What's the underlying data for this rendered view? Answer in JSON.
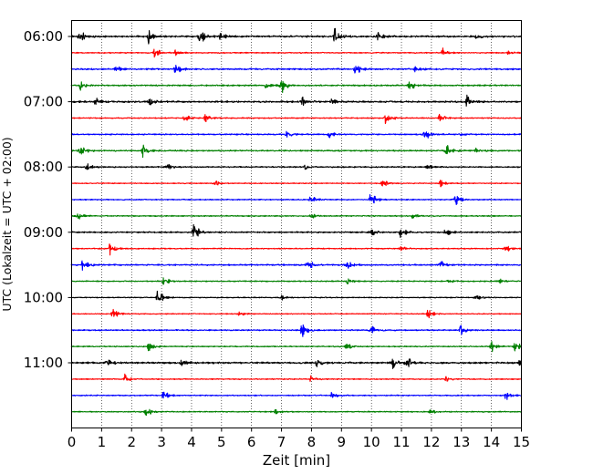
{
  "chart_data": {
    "type": "line",
    "title": "",
    "xlabel": "Zeit  [min]",
    "ylabel": "UTC (Lokalzeit = UTC + 02:00)",
    "xlim": [
      0,
      15
    ],
    "x_ticks": [
      0,
      1,
      2,
      3,
      4,
      5,
      6,
      7,
      8,
      9,
      10,
      11,
      12,
      13,
      14,
      15
    ],
    "y_tick_labels": [
      "06:00",
      "07:00",
      "08:00",
      "09:00",
      "10:00",
      "11:00"
    ],
    "grid": {
      "x": true,
      "style": "dotted",
      "y": false
    },
    "trace_interval_minutes": 15,
    "color_cycle": [
      "#000000",
      "#ff0000",
      "#0000ff",
      "#008000"
    ],
    "traces": [
      {
        "start": "06:00",
        "color": "#000000",
        "amplitude": 1.0,
        "events": [
          {
            "t": 0.3,
            "a": 2.2
          },
          {
            "t": 2.6,
            "a": 2.6
          },
          {
            "t": 4.3,
            "a": 3.0
          },
          {
            "t": 5.0,
            "a": 1.4
          },
          {
            "t": 8.8,
            "a": 3.2
          },
          {
            "t": 10.2,
            "a": 1.6
          },
          {
            "t": 13.5,
            "a": 1.0
          }
        ]
      },
      {
        "start": "06:15",
        "color": "#ff0000",
        "amplitude": 0.6,
        "events": [
          {
            "t": 2.8,
            "a": 2.2
          },
          {
            "t": 3.5,
            "a": 1.2
          },
          {
            "t": 12.4,
            "a": 1.6
          },
          {
            "t": 14.6,
            "a": 0.8
          }
        ]
      },
      {
        "start": "06:30",
        "color": "#0000ff",
        "amplitude": 0.9,
        "events": [
          {
            "t": 1.5,
            "a": 1.4
          },
          {
            "t": 3.5,
            "a": 2.2
          },
          {
            "t": 9.5,
            "a": 2.4
          },
          {
            "t": 11.5,
            "a": 1.2
          }
        ]
      },
      {
        "start": "06:45",
        "color": "#008000",
        "amplitude": 0.8,
        "events": [
          {
            "t": 0.3,
            "a": 1.6
          },
          {
            "t": 6.5,
            "a": 1.2
          },
          {
            "t": 7.0,
            "a": 3.2
          },
          {
            "t": 11.3,
            "a": 2.0
          }
        ]
      },
      {
        "start": "07:00",
        "color": "#000000",
        "amplitude": 1.0,
        "events": [
          {
            "t": 0.8,
            "a": 1.6
          },
          {
            "t": 2.6,
            "a": 1.8
          },
          {
            "t": 7.7,
            "a": 2.0
          },
          {
            "t": 8.7,
            "a": 1.8
          },
          {
            "t": 13.2,
            "a": 2.6
          }
        ]
      },
      {
        "start": "07:15",
        "color": "#ff0000",
        "amplitude": 0.6,
        "events": [
          {
            "t": 3.8,
            "a": 1.4
          },
          {
            "t": 4.5,
            "a": 2.0
          },
          {
            "t": 10.5,
            "a": 2.8
          },
          {
            "t": 12.3,
            "a": 1.4
          }
        ]
      },
      {
        "start": "07:30",
        "color": "#0000ff",
        "amplitude": 0.7,
        "events": [
          {
            "t": 7.2,
            "a": 1.4
          },
          {
            "t": 8.6,
            "a": 1.4
          },
          {
            "t": 11.8,
            "a": 3.0
          },
          {
            "t": 13.0,
            "a": 0.8
          }
        ]
      },
      {
        "start": "07:45",
        "color": "#008000",
        "amplitude": 0.8,
        "events": [
          {
            "t": 0.3,
            "a": 2.4
          },
          {
            "t": 2.4,
            "a": 2.2
          },
          {
            "t": 12.5,
            "a": 2.8
          },
          {
            "t": 13.5,
            "a": 0.8
          }
        ]
      },
      {
        "start": "08:00",
        "color": "#000000",
        "amplitude": 0.7,
        "events": [
          {
            "t": 0.5,
            "a": 1.6
          },
          {
            "t": 3.2,
            "a": 1.4
          },
          {
            "t": 7.8,
            "a": 1.0
          },
          {
            "t": 11.9,
            "a": 1.0
          }
        ]
      },
      {
        "start": "08:15",
        "color": "#ff0000",
        "amplitude": 0.5,
        "events": [
          {
            "t": 4.8,
            "a": 1.2
          },
          {
            "t": 10.4,
            "a": 1.6
          },
          {
            "t": 12.3,
            "a": 1.4
          }
        ]
      },
      {
        "start": "08:30",
        "color": "#0000ff",
        "amplitude": 0.6,
        "events": [
          {
            "t": 8.0,
            "a": 1.6
          },
          {
            "t": 10.0,
            "a": 2.8
          },
          {
            "t": 12.8,
            "a": 3.0
          }
        ]
      },
      {
        "start": "08:45",
        "color": "#008000",
        "amplitude": 0.6,
        "events": [
          {
            "t": 0.2,
            "a": 1.6
          },
          {
            "t": 8.0,
            "a": 1.0
          },
          {
            "t": 11.4,
            "a": 1.0
          }
        ]
      },
      {
        "start": "09:00",
        "color": "#000000",
        "amplitude": 0.8,
        "events": [
          {
            "t": 4.1,
            "a": 3.6
          },
          {
            "t": 10.0,
            "a": 1.8
          },
          {
            "t": 11.0,
            "a": 2.0
          },
          {
            "t": 12.5,
            "a": 1.6
          }
        ]
      },
      {
        "start": "09:15",
        "color": "#ff0000",
        "amplitude": 0.6,
        "events": [
          {
            "t": 1.3,
            "a": 2.2
          },
          {
            "t": 11.0,
            "a": 1.2
          },
          {
            "t": 14.5,
            "a": 1.4
          }
        ]
      },
      {
        "start": "09:30",
        "color": "#0000ff",
        "amplitude": 0.8,
        "events": [
          {
            "t": 0.4,
            "a": 2.2
          },
          {
            "t": 7.9,
            "a": 2.8
          },
          {
            "t": 9.2,
            "a": 2.2
          },
          {
            "t": 12.3,
            "a": 1.6
          }
        ]
      },
      {
        "start": "09:45",
        "color": "#008000",
        "amplitude": 0.6,
        "events": [
          {
            "t": 3.1,
            "a": 1.8
          },
          {
            "t": 9.2,
            "a": 1.6
          },
          {
            "t": 12.6,
            "a": 1.0
          },
          {
            "t": 14.3,
            "a": 1.0
          }
        ]
      },
      {
        "start": "10:00",
        "color": "#000000",
        "amplitude": 0.5,
        "events": [
          {
            "t": 2.9,
            "a": 3.0
          },
          {
            "t": 7.0,
            "a": 1.0
          },
          {
            "t": 13.5,
            "a": 1.4
          }
        ]
      },
      {
        "start": "10:15",
        "color": "#ff0000",
        "amplitude": 0.5,
        "events": [
          {
            "t": 1.4,
            "a": 2.6
          },
          {
            "t": 5.6,
            "a": 1.0
          },
          {
            "t": 11.9,
            "a": 2.0
          }
        ]
      },
      {
        "start": "10:30",
        "color": "#0000ff",
        "amplitude": 0.7,
        "events": [
          {
            "t": 7.7,
            "a": 3.2
          },
          {
            "t": 10.0,
            "a": 1.8
          },
          {
            "t": 13.0,
            "a": 2.0
          }
        ]
      },
      {
        "start": "10:45",
        "color": "#008000",
        "amplitude": 0.6,
        "events": [
          {
            "t": 2.6,
            "a": 2.2
          },
          {
            "t": 9.2,
            "a": 1.6
          },
          {
            "t": 14.0,
            "a": 2.4
          },
          {
            "t": 14.8,
            "a": 2.4
          }
        ]
      },
      {
        "start": "11:00",
        "color": "#000000",
        "amplitude": 1.0,
        "events": [
          {
            "t": 1.2,
            "a": 1.6
          },
          {
            "t": 3.7,
            "a": 1.4
          },
          {
            "t": 8.2,
            "a": 1.6
          },
          {
            "t": 10.7,
            "a": 2.4
          },
          {
            "t": 11.2,
            "a": 2.4
          },
          {
            "t": 15.0,
            "a": 2.4
          }
        ]
      },
      {
        "start": "11:15",
        "color": "#ff0000",
        "amplitude": 0.6,
        "events": [
          {
            "t": 1.8,
            "a": 1.8
          },
          {
            "t": 8.0,
            "a": 1.0
          },
          {
            "t": 12.5,
            "a": 1.0
          }
        ]
      },
      {
        "start": "11:30",
        "color": "#0000ff",
        "amplitude": 0.6,
        "events": [
          {
            "t": 3.1,
            "a": 2.0
          },
          {
            "t": 8.7,
            "a": 1.2
          },
          {
            "t": 14.5,
            "a": 2.2
          }
        ]
      },
      {
        "start": "11:45",
        "color": "#008000",
        "amplitude": 0.6,
        "events": [
          {
            "t": 2.5,
            "a": 2.4
          },
          {
            "t": 6.8,
            "a": 1.0
          },
          {
            "t": 12.0,
            "a": 1.0
          }
        ]
      }
    ]
  }
}
